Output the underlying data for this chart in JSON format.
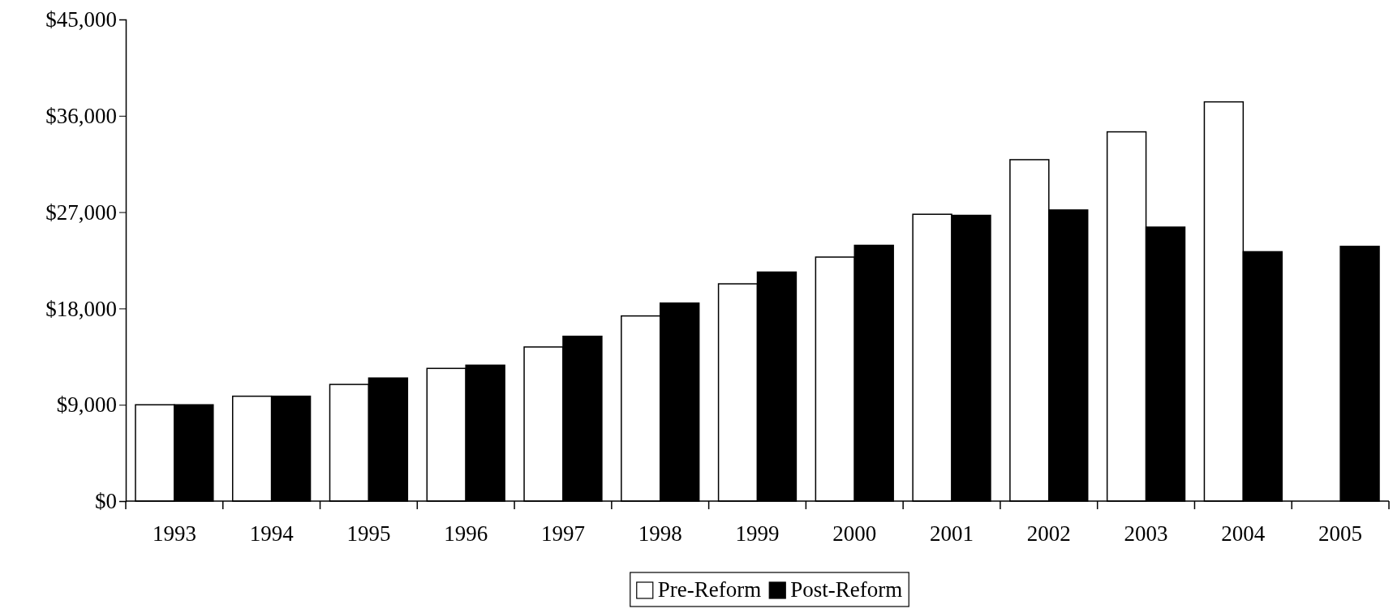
{
  "chart_data": {
    "type": "bar",
    "categories": [
      "1993",
      "1994",
      "1995",
      "1996",
      "1997",
      "1998",
      "1999",
      "2000",
      "2001",
      "2002",
      "2003",
      "2004",
      "2005"
    ],
    "series": [
      {
        "name": "Pre-Reform",
        "color": "#ffffff",
        "values": [
          9000,
          9800,
          10900,
          12400,
          14400,
          17300,
          20300,
          22800,
          26800,
          31900,
          34500,
          37300,
          null
        ]
      },
      {
        "name": "Post-Reform",
        "color": "#000000",
        "values": [
          9000,
          9800,
          11500,
          12700,
          15400,
          18500,
          21400,
          23900,
          26700,
          27200,
          25600,
          23300,
          23800
        ]
      }
    ],
    "ylim": [
      0,
      45000
    ],
    "yticks": [
      {
        "value": 0,
        "label": "$0"
      },
      {
        "value": 9000,
        "label": "$9,000"
      },
      {
        "value": 18000,
        "label": "$18,000"
      },
      {
        "value": 27000,
        "label": "$27,000"
      },
      {
        "value": 36000,
        "label": "$36,000"
      },
      {
        "value": 45000,
        "label": "$45,000"
      }
    ],
    "grid": false,
    "legend": "bottom"
  }
}
